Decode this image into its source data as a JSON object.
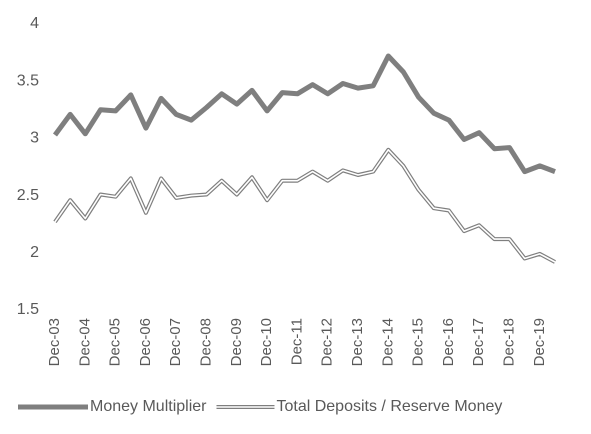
{
  "chart_data": {
    "type": "line",
    "categories": [
      "Dec-03",
      null,
      "Dec-04",
      null,
      "Dec-05",
      null,
      "Dec-06",
      null,
      "Dec-07",
      null,
      "Dec-08",
      null,
      "Dec-09",
      null,
      "Dec-10",
      null,
      "Dec-11",
      null,
      "Dec-12",
      null,
      "Dec-13",
      null,
      "Dec-14",
      null,
      "Dec-15",
      null,
      "Dec-16",
      null,
      "Dec-17",
      null,
      "Dec-18",
      null,
      "Dec-19",
      null
    ],
    "series": [
      {
        "name": "Money Multiplier",
        "color": "#7f7f7f",
        "style": "solid",
        "values": [
          3.03,
          3.21,
          3.04,
          3.25,
          3.24,
          3.38,
          3.09,
          3.35,
          3.21,
          3.16,
          3.27,
          3.39,
          3.3,
          3.42,
          3.24,
          3.4,
          3.39,
          3.47,
          3.39,
          3.48,
          3.44,
          3.46,
          3.72,
          3.58,
          3.36,
          3.22,
          3.16,
          2.99,
          3.05,
          2.91,
          2.92,
          2.71,
          2.76,
          2.71
        ]
      },
      {
        "name": "Total Deposits / Reserve Money",
        "color": "#7f7f7f",
        "style": "double",
        "values": [
          2.27,
          2.46,
          2.3,
          2.51,
          2.49,
          2.65,
          2.35,
          2.65,
          2.48,
          2.5,
          2.51,
          2.63,
          2.51,
          2.66,
          2.46,
          2.63,
          2.63,
          2.71,
          2.63,
          2.72,
          2.68,
          2.71,
          2.9,
          2.76,
          2.55,
          2.39,
          2.37,
          2.19,
          2.24,
          2.12,
          2.12,
          1.95,
          1.99,
          1.92
        ]
      }
    ],
    "ylim": [
      1.5,
      4
    ],
    "yticks": [
      1.5,
      2,
      2.5,
      3,
      3.5,
      4
    ],
    "grid": false,
    "legend": "bottom"
  }
}
